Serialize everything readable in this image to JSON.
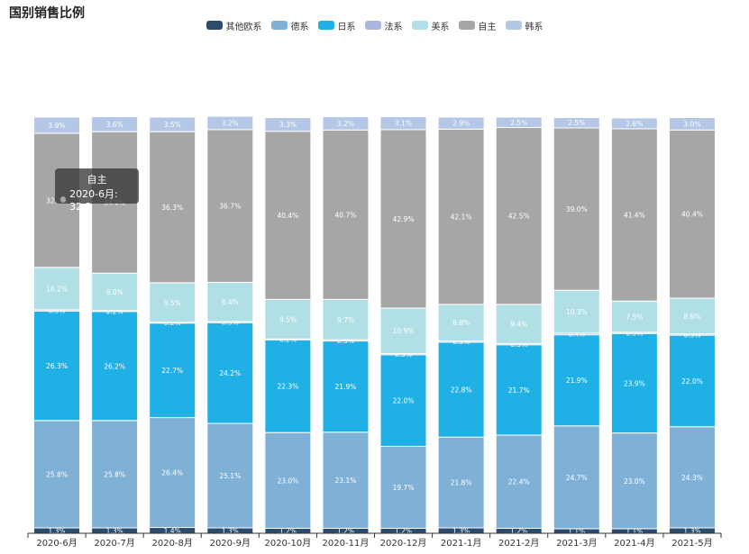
{
  "chart_data": {
    "type": "bar",
    "stacked": true,
    "percent": true,
    "title": "国别销售比例",
    "categories": [
      "2020-6月",
      "2020-7月",
      "2020-8月",
      "2020-9月",
      "2020-10月",
      "2020-11月",
      "2020-12月",
      "2021-1月",
      "2021-2月",
      "2021-3月",
      "2021-4月",
      "2021-5月"
    ],
    "series": [
      {
        "name": "其他欧系",
        "color": "#2b4c6f",
        "values": [
          1.3,
          1.3,
          1.4,
          1.3,
          1.2,
          1.2,
          1.2,
          1.3,
          1.2,
          1.1,
          1.1,
          1.3
        ]
      },
      {
        "name": "德系",
        "color": "#7fb0d5",
        "values": [
          25.8,
          25.8,
          26.4,
          25.1,
          23.0,
          23.1,
          19.7,
          21.8,
          22.4,
          24.7,
          23.0,
          24.3
        ]
      },
      {
        "name": "日系",
        "color": "#1fb1e6",
        "values": [
          26.3,
          26.2,
          22.7,
          24.2,
          22.3,
          21.9,
          22.0,
          22.8,
          21.7,
          21.9,
          23.9,
          22.0
        ]
      },
      {
        "name": "法系",
        "color": "#aab8dd",
        "values": [
          0.3,
          0.2,
          0.2,
          0.3,
          0.2,
          0.3,
          0.3,
          0.3,
          0.3,
          0.4,
          0.3,
          0.3
        ]
      },
      {
        "name": "美系",
        "color": "#b0e0e6",
        "values": [
          10.2,
          9.0,
          9.5,
          9.4,
          9.5,
          9.7,
          10.9,
          8.8,
          9.4,
          10.3,
          7.5,
          8.6
        ]
      },
      {
        "name": "自主",
        "color": "#a6a6a6",
        "values": [
          32.2,
          34.0,
          36.3,
          36.7,
          40.4,
          40.7,
          42.9,
          42.1,
          42.5,
          39.0,
          41.4,
          40.4
        ]
      },
      {
        "name": "韩系",
        "color": "#b4c7e7",
        "values": [
          3.9,
          3.6,
          3.5,
          3.2,
          3.3,
          3.2,
          3.1,
          2.9,
          2.5,
          2.5,
          2.6,
          3.0
        ]
      }
    ],
    "label_format": "{v}%",
    "ylim": [
      0,
      100
    ],
    "grid": false,
    "legend_position": "top-center"
  },
  "tooltip": {
    "series": "自主",
    "text": "2020-6月: 32.2"
  }
}
